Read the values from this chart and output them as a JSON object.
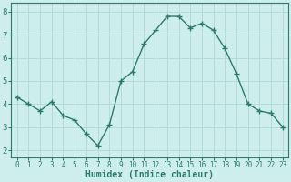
{
  "x": [
    0,
    1,
    2,
    3,
    4,
    5,
    6,
    7,
    8,
    9,
    10,
    11,
    12,
    13,
    14,
    15,
    16,
    17,
    18,
    19,
    20,
    21,
    22,
    23
  ],
  "y": [
    4.3,
    4.0,
    3.7,
    4.1,
    3.5,
    3.3,
    2.7,
    2.2,
    3.1,
    5.0,
    5.4,
    6.6,
    7.2,
    7.8,
    7.8,
    7.3,
    7.5,
    7.2,
    6.4,
    5.3,
    4.0,
    3.7,
    3.6,
    3.0
  ],
  "line_color": "#2d7a6e",
  "marker": "+",
  "marker_size": 4,
  "marker_lw": 1.0,
  "bg_color": "#cdeeed",
  "grid_color": "#b0d8d5",
  "xlabel": "Humidex (Indice chaleur)",
  "xlabel_fontsize": 7,
  "xtick_fontsize": 5.5,
  "ytick_fontsize": 6.5,
  "ylim": [
    1.7,
    8.4
  ],
  "xlim": [
    -0.5,
    23.5
  ],
  "yticks": [
    2,
    3,
    4,
    5,
    6,
    7,
    8
  ],
  "xticks": [
    0,
    1,
    2,
    3,
    4,
    5,
    6,
    7,
    8,
    9,
    10,
    11,
    12,
    13,
    14,
    15,
    16,
    17,
    18,
    19,
    20,
    21,
    22,
    23
  ],
  "grid_lw": 0.6,
  "line_lw": 1.0,
  "spine_color": "#2d7a6e",
  "tick_color": "#2d7a6e"
}
